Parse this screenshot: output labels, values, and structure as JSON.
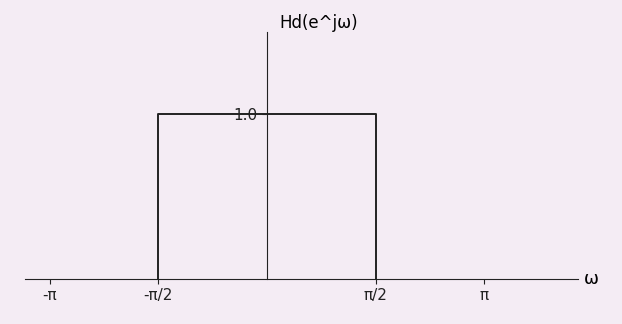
{
  "chart_data": {
    "type": "line",
    "y_label": "Hd(e^jω)",
    "x_label": "ω",
    "x": [
      -1.5708,
      -1.5708,
      1.5708,
      1.5708
    ],
    "values": [
      0,
      1.0,
      1.0,
      0
    ],
    "color": "#222222",
    "xlim": [
      -3.5,
      4.5
    ],
    "ylim": [
      0,
      1.5
    ],
    "xticks": [
      {
        "value": -3.14159,
        "label": "-π"
      },
      {
        "value": -1.5708,
        "label": "-π/2"
      },
      {
        "value": 1.5708,
        "label": "π/2"
      },
      {
        "value": 3.14159,
        "label": "π"
      }
    ],
    "yticks": [
      {
        "value": 1.0,
        "label": "1.0"
      }
    ],
    "grid": false
  }
}
